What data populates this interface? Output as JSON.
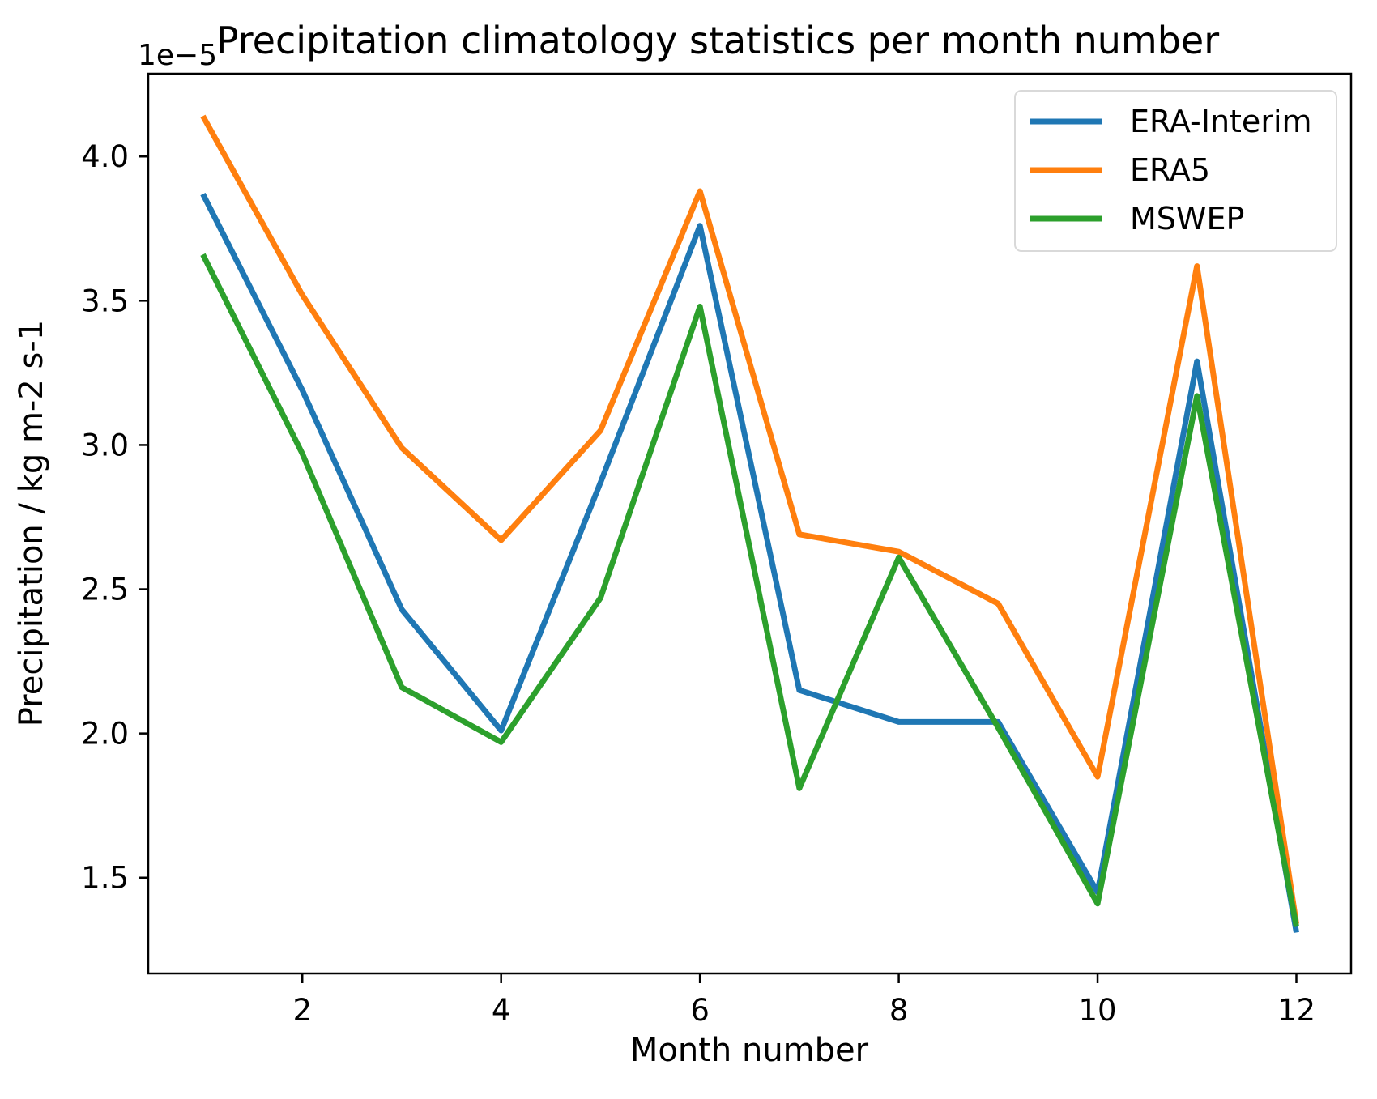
{
  "figure": {
    "title": "Precipitation climatology statistics per month number",
    "offset_text": "1e−5",
    "xlabel": "Month number",
    "ylabel": "Precipitation / kg m-2 s-1"
  },
  "chart_data": {
    "type": "line",
    "title": "Precipitation climatology statistics per month number",
    "xlabel": "Month number",
    "ylabel": "Precipitation / kg m-2 s-1",
    "y_offset_label": "1e−5",
    "units_note": "y values are multiplied by 1e-5 (axis offset label)",
    "x": [
      1,
      2,
      3,
      4,
      5,
      6,
      7,
      8,
      9,
      10,
      11,
      12
    ],
    "series": [
      {
        "name": "ERA-Interim",
        "color": "#1f77b4",
        "values": [
          3.87,
          3.19,
          2.43,
          2.01,
          2.87,
          3.76,
          2.15,
          2.04,
          2.04,
          1.45,
          3.29,
          1.31
        ]
      },
      {
        "name": "ERA5",
        "color": "#ff7f0e",
        "values": [
          4.14,
          3.52,
          2.99,
          2.67,
          3.05,
          3.88,
          2.69,
          2.63,
          2.45,
          1.85,
          3.62,
          1.34
        ]
      },
      {
        "name": "MSWEP",
        "color": "#2ca02c",
        "values": [
          3.66,
          2.97,
          2.16,
          1.97,
          2.47,
          3.48,
          1.81,
          2.61,
          2.02,
          1.41,
          3.17,
          1.33
        ]
      }
    ],
    "xticks": [
      "2",
      "4",
      "6",
      "8",
      "10",
      "12"
    ],
    "yticks": [
      "1.5",
      "2.0",
      "2.5",
      "3.0",
      "3.5",
      "4.0"
    ],
    "xlim": [
      0.45,
      12.55
    ],
    "ylim": [
      1.168,
      4.287
    ],
    "grid": false,
    "legend": {
      "position": "upper right",
      "entries": [
        "ERA-Interim",
        "ERA5",
        "MSWEP"
      ]
    }
  }
}
